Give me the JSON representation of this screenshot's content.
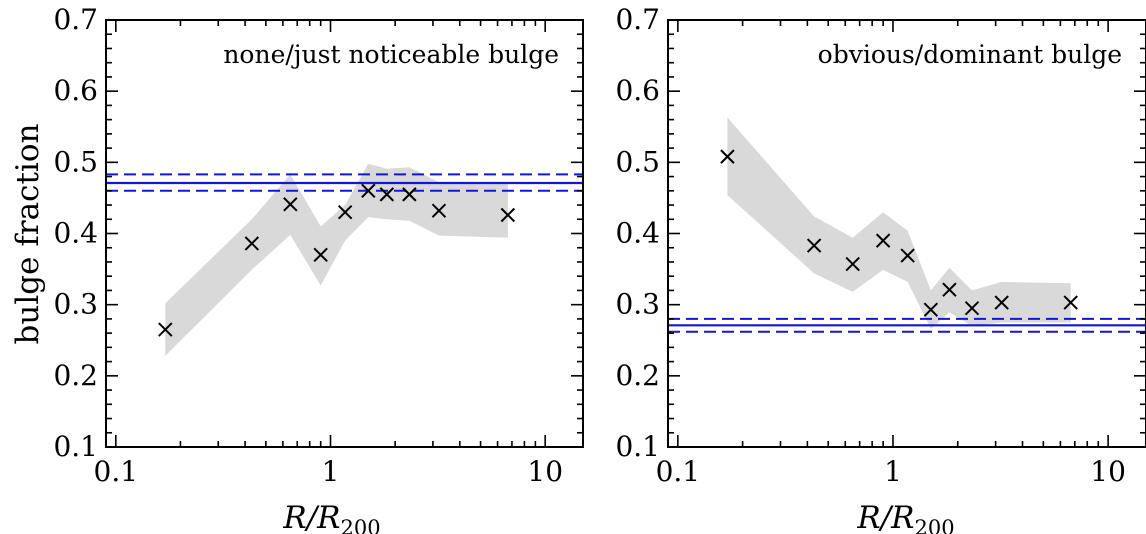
{
  "figure": {
    "ylabel": "bulge fraction",
    "xlabel_main": "R/R",
    "xlabel_sub": "200"
  },
  "chart_data": [
    {
      "type": "scatter",
      "title": "none/just noticeable bulge",
      "xlabel": "R/R200",
      "ylabel": "bulge fraction",
      "xscale": "log",
      "xlim": [
        0.09,
        15
      ],
      "ylim": [
        0.1,
        0.7
      ],
      "x_ticks": [
        0.1,
        1,
        10
      ],
      "x_tick_labels": [
        "0.1",
        "1",
        "10"
      ],
      "y_ticks": [
        0.1,
        0.2,
        0.3,
        0.4,
        0.5,
        0.6,
        0.7
      ],
      "y_tick_labels": [
        "0.1",
        "0.2",
        "0.3",
        "0.4",
        "0.5",
        "0.6",
        "0.7"
      ],
      "x": [
        0.17,
        0.43,
        0.65,
        0.9,
        1.17,
        1.5,
        1.83,
        2.33,
        3.2,
        6.7
      ],
      "y": [
        0.265,
        0.386,
        0.441,
        0.37,
        0.43,
        0.46,
        0.455,
        0.455,
        0.432,
        0.426
      ],
      "band_upper": [
        0.302,
        0.42,
        0.483,
        0.41,
        0.44,
        0.498,
        0.491,
        0.493,
        0.472,
        0.472
      ],
      "band_lower": [
        0.228,
        0.349,
        0.398,
        0.327,
        0.39,
        0.423,
        0.42,
        0.418,
        0.397,
        0.394
      ],
      "reference_line": {
        "value": 0.471,
        "upper": 0.483,
        "lower": 0.46,
        "color": "#1515d8"
      },
      "band_color": "#d9d9d9",
      "marker": "x",
      "grid": false,
      "legend": "none"
    },
    {
      "type": "scatter",
      "title": "obvious/dominant bulge",
      "xlabel": "R/R200",
      "ylabel": "",
      "xscale": "log",
      "xlim": [
        0.09,
        15
      ],
      "ylim": [
        0.1,
        0.7
      ],
      "x_ticks": [
        0.1,
        1,
        10
      ],
      "x_tick_labels": [
        "0.1",
        "1",
        "10"
      ],
      "y_ticks": [
        0.1,
        0.2,
        0.3,
        0.4,
        0.5,
        0.6,
        0.7
      ],
      "y_tick_labels": [
        "0.1",
        "0.2",
        "0.3",
        "0.4",
        "0.5",
        "0.6",
        "0.7"
      ],
      "x": [
        0.17,
        0.43,
        0.65,
        0.9,
        1.17,
        1.5,
        1.83,
        2.33,
        3.2,
        6.7
      ],
      "y": [
        0.508,
        0.383,
        0.357,
        0.39,
        0.369,
        0.293,
        0.321,
        0.295,
        0.303,
        0.303
      ],
      "band_upper": [
        0.563,
        0.424,
        0.394,
        0.43,
        0.404,
        0.32,
        0.352,
        0.32,
        0.332,
        0.33
      ],
      "band_lower": [
        0.454,
        0.344,
        0.318,
        0.349,
        0.332,
        0.266,
        0.289,
        0.27,
        0.275,
        0.275
      ],
      "reference_line": {
        "value": 0.271,
        "upper": 0.28,
        "lower": 0.262,
        "color": "#1515d8"
      },
      "band_color": "#d9d9d9",
      "marker": "x",
      "grid": false,
      "legend": "none"
    }
  ]
}
